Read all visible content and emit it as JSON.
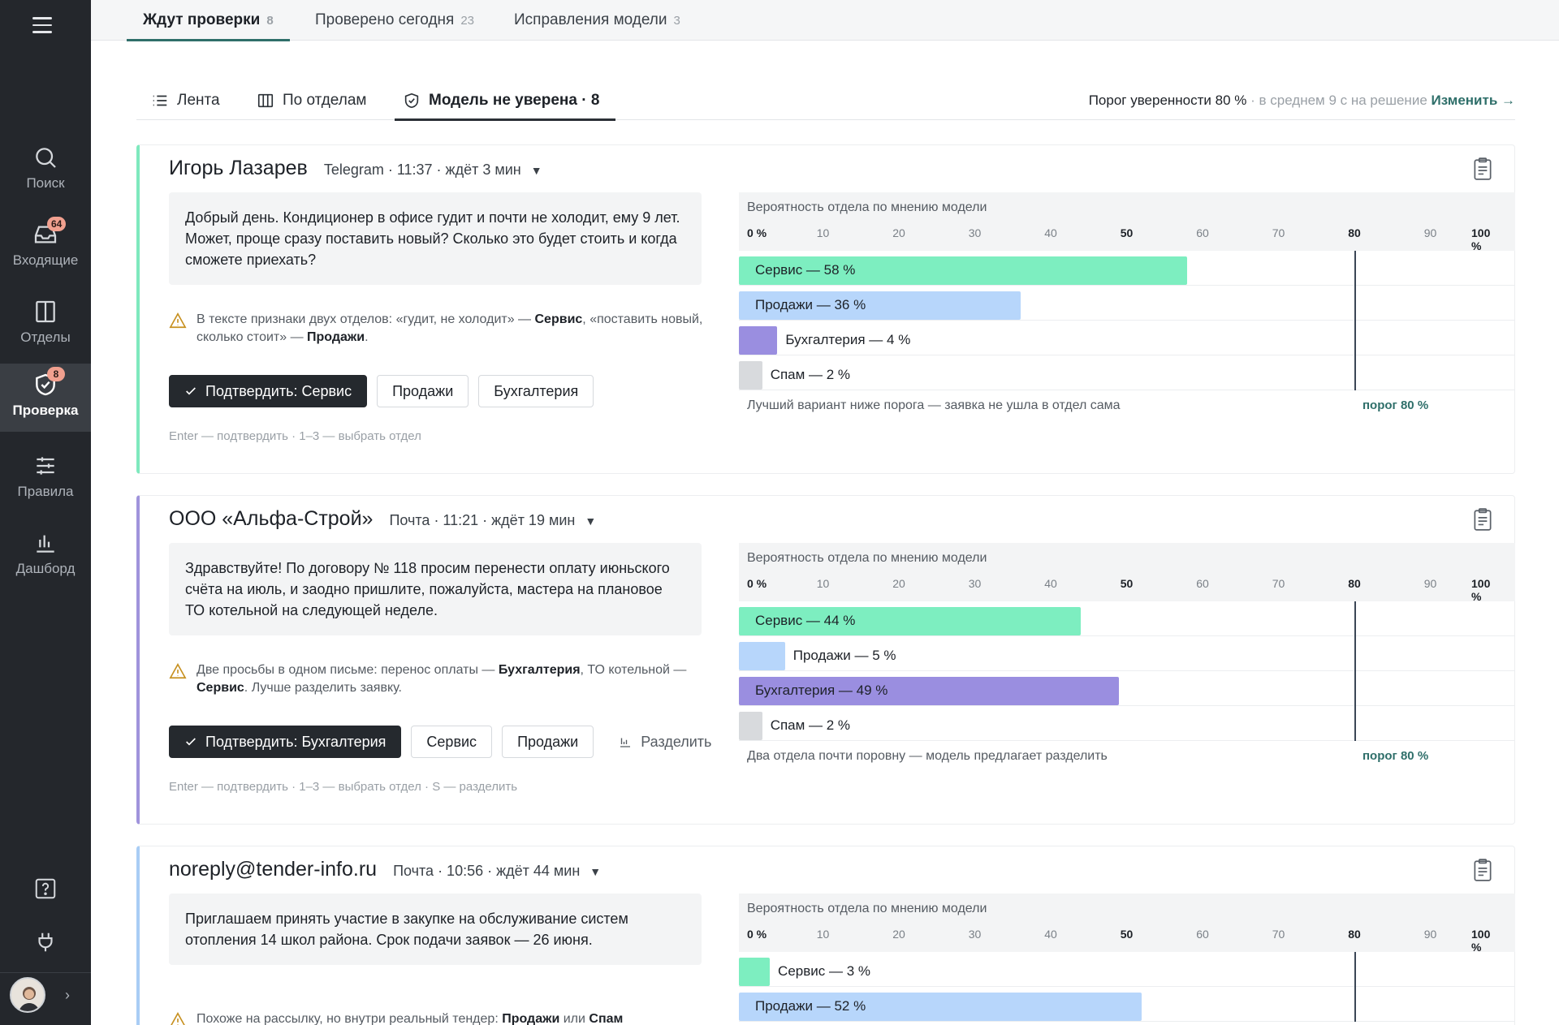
{
  "sidebar": {
    "items": [
      {
        "label": "Поиск",
        "icon": "search-icon",
        "badge": ""
      },
      {
        "label": "Входящие",
        "icon": "inbox-icon",
        "badge": "64"
      },
      {
        "label": "Отделы",
        "icon": "columns-icon",
        "badge": ""
      },
      {
        "label": "Проверка",
        "icon": "shield-check-icon",
        "badge": "8"
      },
      {
        "label": "Правила",
        "icon": "sliders-icon",
        "badge": ""
      },
      {
        "label": "Дашборд",
        "icon": "bar-chart-icon",
        "badge": ""
      }
    ]
  },
  "top_tabs": [
    {
      "label": "Ждут проверки",
      "count": "8"
    },
    {
      "label": "Проверено сегодня",
      "count": "23"
    },
    {
      "label": "Исправления модели",
      "count": "3"
    }
  ],
  "sub_tabs": [
    {
      "label": "Лента",
      "icon": "list-icon"
    },
    {
      "label": "По отделам",
      "icon": "columns-icon"
    },
    {
      "label": "Модель не уверена · 8",
      "icon": "shield-check-icon"
    }
  ],
  "threshold_bar": {
    "label": "Порог уверенности 80 %",
    "muted": " · в среднем 9 с на решение ",
    "link": "Изменить →"
  },
  "chart_title": "Вероятность отдела по мнению модели",
  "ticks": [
    "0 %",
    "10",
    "20",
    "30",
    "40",
    "50",
    "60",
    "70",
    "80",
    "90",
    "100 %"
  ],
  "threshold_value": 80,
  "porog_label": "порог 80 %",
  "colors": {
    "service": "#7deec0",
    "sales": "#b7d6fb",
    "accounting": "#9a8ee0",
    "spam": "#d8dadd"
  },
  "cards": [
    {
      "name": "Игорь Лазарев",
      "meta": "Telegram · 11:37 · ждёт 3 мин",
      "accent": "#7fe9be",
      "message": "Добрый день. Кондиционер в офисе гудит и почти не холодит, ему 9 лет. Может, проще сразу поставить новый? Сколько это будет стоить и когда сможете приехать?",
      "warn_parts": [
        "В тексте признаки двух отделов: «гудит, не холодит» — ",
        "Сервис",
        ", «поставить новый, сколько стоит» — ",
        "Продажи",
        "."
      ],
      "confirm": "Подтвердить: Сервис",
      "alt_buttons": [
        "Продажи",
        "Бухгалтерия"
      ],
      "split": "",
      "hint": "Enter — подтвердить · 1–3 — выбрать отдел",
      "bars": [
        {
          "label": "Сервис — 58 %",
          "value": 58,
          "color_key": "service"
        },
        {
          "label": "Продажи — 36 %",
          "value": 36,
          "color_key": "sales"
        },
        {
          "label": "Бухгалтерия — 4 %",
          "value": 4,
          "color_key": "accounting"
        },
        {
          "label": "Спам — 2 %",
          "value": 2,
          "color_key": "spam"
        }
      ],
      "note": "Лучший вариант ниже порога — заявка не ушла в отдел сама"
    },
    {
      "name": "ООО «Альфа-Строй»",
      "meta": "Почта · 11:21 · ждёт 19 мин",
      "accent": "#a094dc",
      "message": "Здравствуйте! По договору № 118 просим перенести оплату июньского счёта на июль, и заодно пришлите, пожалуйста, мастера на плановое ТО котельной на следующей неделе.",
      "warn_parts": [
        "Две просьбы в одном письме: перенос оплаты — ",
        "Бухгалтерия",
        ", ТО котельной — ",
        "Сервис",
        ". Лучше разделить заявку."
      ],
      "confirm": "Подтвердить: Бухгалтерия",
      "alt_buttons": [
        "Сервис",
        "Продажи"
      ],
      "split": "Разделить",
      "hint": "Enter — подтвердить · 1–3 — выбрать отдел · S — разделить",
      "bars": [
        {
          "label": "Сервис — 44 %",
          "value": 44,
          "color_key": "service"
        },
        {
          "label": "Продажи — 5 %",
          "value": 5,
          "color_key": "sales"
        },
        {
          "label": "Бухгалтерия — 49 %",
          "value": 49,
          "color_key": "accounting"
        },
        {
          "label": "Спам — 2 %",
          "value": 2,
          "color_key": "spam"
        }
      ],
      "note": "Два отдела почти поровну — модель предлагает разделить"
    },
    {
      "name": "noreply@tender-info.ru",
      "meta": "Почта · 10:56 · ждёт 44 мин",
      "accent": "#a9cdf5",
      "message": "Приглашаем принять участие в закупке на обслуживание систем отопления 14 школ района. Срок подачи заявок — 26 июня.",
      "warn_parts": [
        "Похоже на рассылку, но внутри реальный тендер: ",
        "Продажи",
        " или ",
        "Спам",
        ""
      ],
      "confirm": "",
      "alt_buttons": [],
      "split": "",
      "hint": "",
      "bars": [
        {
          "label": "Сервис — 3 %",
          "value": 3,
          "color_key": "service"
        },
        {
          "label": "Продажи — 52 %",
          "value": 52,
          "color_key": "sales"
        }
      ],
      "note": ""
    }
  ]
}
